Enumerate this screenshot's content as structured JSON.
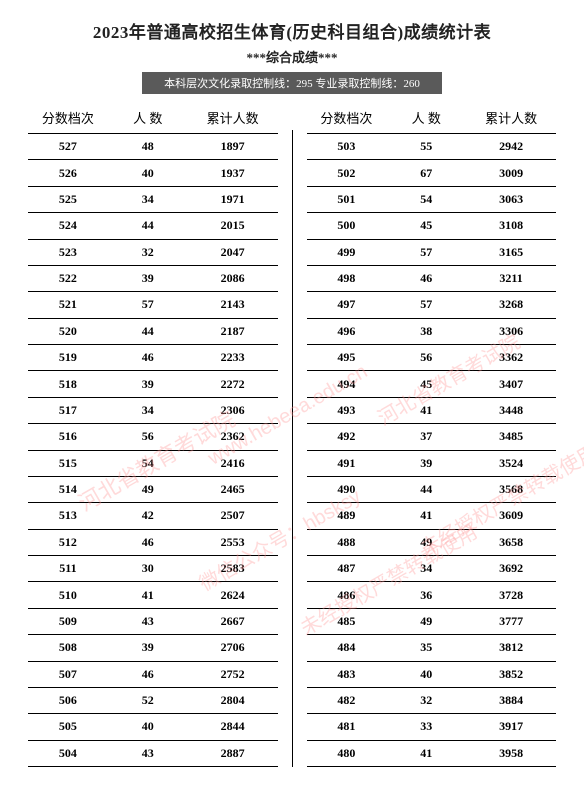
{
  "title": "2023年普通高校招生体育(历史科目组合)成绩统计表",
  "subtitle": "***综合成绩***",
  "banner": "本科层次文化录取控制线：295  专业录取控制线：260",
  "headers": {
    "score": "分数档次",
    "count": "人  数",
    "cumulative": "累计人数"
  },
  "watermarks": {
    "w1": "河北省教育考试院",
    "w2": "www.hebeea.edu.cn",
    "w3": "微信公众号：hbsksy",
    "w4": "未经授权严禁转载使用",
    "w5": "河北省教育考试院",
    "w6": "未经授权严禁转载使用"
  },
  "left": [
    {
      "s": "527",
      "c": "48",
      "t": "1897"
    },
    {
      "s": "526",
      "c": "40",
      "t": "1937"
    },
    {
      "s": "525",
      "c": "34",
      "t": "1971"
    },
    {
      "s": "524",
      "c": "44",
      "t": "2015"
    },
    {
      "s": "523",
      "c": "32",
      "t": "2047"
    },
    {
      "s": "522",
      "c": "39",
      "t": "2086"
    },
    {
      "s": "521",
      "c": "57",
      "t": "2143"
    },
    {
      "s": "520",
      "c": "44",
      "t": "2187"
    },
    {
      "s": "519",
      "c": "46",
      "t": "2233"
    },
    {
      "s": "518",
      "c": "39",
      "t": "2272"
    },
    {
      "s": "517",
      "c": "34",
      "t": "2306"
    },
    {
      "s": "516",
      "c": "56",
      "t": "2362"
    },
    {
      "s": "515",
      "c": "54",
      "t": "2416"
    },
    {
      "s": "514",
      "c": "49",
      "t": "2465"
    },
    {
      "s": "513",
      "c": "42",
      "t": "2507"
    },
    {
      "s": "512",
      "c": "46",
      "t": "2553"
    },
    {
      "s": "511",
      "c": "30",
      "t": "2583"
    },
    {
      "s": "510",
      "c": "41",
      "t": "2624"
    },
    {
      "s": "509",
      "c": "43",
      "t": "2667"
    },
    {
      "s": "508",
      "c": "39",
      "t": "2706"
    },
    {
      "s": "507",
      "c": "46",
      "t": "2752"
    },
    {
      "s": "506",
      "c": "52",
      "t": "2804"
    },
    {
      "s": "505",
      "c": "40",
      "t": "2844"
    },
    {
      "s": "504",
      "c": "43",
      "t": "2887"
    }
  ],
  "right": [
    {
      "s": "503",
      "c": "55",
      "t": "2942"
    },
    {
      "s": "502",
      "c": "67",
      "t": "3009"
    },
    {
      "s": "501",
      "c": "54",
      "t": "3063"
    },
    {
      "s": "500",
      "c": "45",
      "t": "3108"
    },
    {
      "s": "499",
      "c": "57",
      "t": "3165"
    },
    {
      "s": "498",
      "c": "46",
      "t": "3211"
    },
    {
      "s": "497",
      "c": "57",
      "t": "3268"
    },
    {
      "s": "496",
      "c": "38",
      "t": "3306"
    },
    {
      "s": "495",
      "c": "56",
      "t": "3362"
    },
    {
      "s": "494",
      "c": "45",
      "t": "3407"
    },
    {
      "s": "493",
      "c": "41",
      "t": "3448"
    },
    {
      "s": "492",
      "c": "37",
      "t": "3485"
    },
    {
      "s": "491",
      "c": "39",
      "t": "3524"
    },
    {
      "s": "490",
      "c": "44",
      "t": "3568"
    },
    {
      "s": "489",
      "c": "41",
      "t": "3609"
    },
    {
      "s": "488",
      "c": "49",
      "t": "3658"
    },
    {
      "s": "487",
      "c": "34",
      "t": "3692"
    },
    {
      "s": "486",
      "c": "36",
      "t": "3728"
    },
    {
      "s": "485",
      "c": "49",
      "t": "3777"
    },
    {
      "s": "484",
      "c": "35",
      "t": "3812"
    },
    {
      "s": "483",
      "c": "40",
      "t": "3852"
    },
    {
      "s": "482",
      "c": "32",
      "t": "3884"
    },
    {
      "s": "481",
      "c": "33",
      "t": "3917"
    },
    {
      "s": "480",
      "c": "41",
      "t": "3958"
    }
  ]
}
